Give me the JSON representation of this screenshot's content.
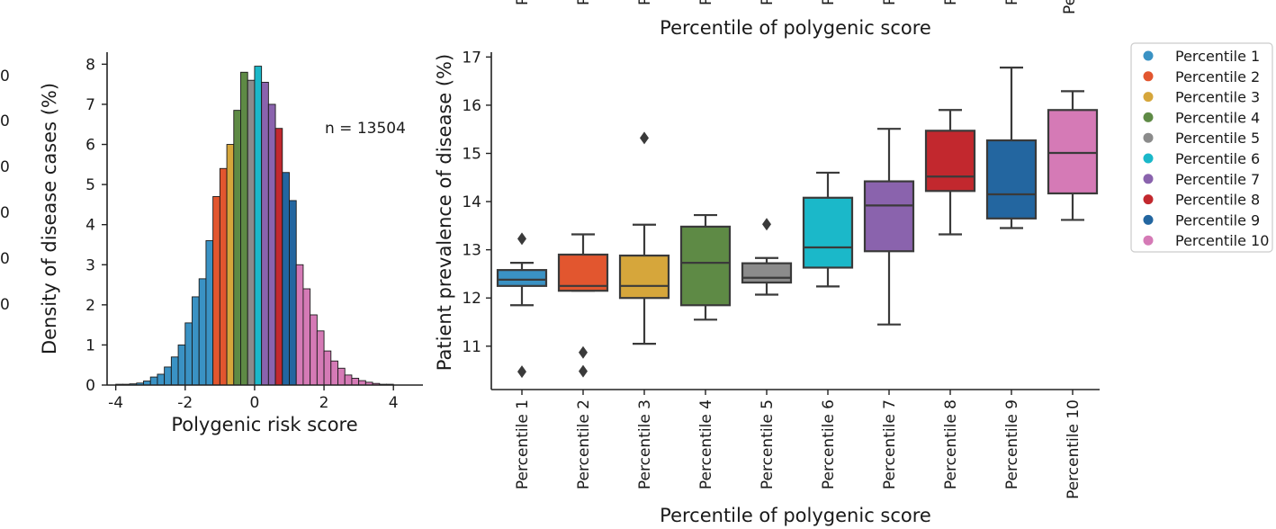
{
  "colors": {
    "palette": [
      "#3a92c4",
      "#e2562f",
      "#d6a63b",
      "#5e8a45",
      "#8b8b8b",
      "#1bb8c9",
      "#8a63ad",
      "#c2282e",
      "#2366a0",
      "#d57ab6"
    ]
  },
  "top_fragment": {
    "xlabel": "Percentile of polygenic score",
    "tick_label": "Pe",
    "tick_glyph": "P",
    "y_tick_glyph": "0"
  },
  "chart_data": [
    {
      "type": "bar",
      "subtype": "histogram",
      "title": "",
      "xlabel": "Polygenic risk score",
      "ylabel": "Density of disease cases (%)",
      "annotation": "n = 13504",
      "xlim": [
        -4.25,
        4.85
      ],
      "ylim": [
        0,
        8.3
      ],
      "xticks": [
        -4,
        -2,
        0,
        2,
        4
      ],
      "xtick_labels": [
        "-4",
        "-2",
        "0",
        "2",
        "4"
      ],
      "yticks": [
        0,
        1,
        2,
        3,
        4,
        5,
        6,
        7,
        8
      ],
      "ytick_labels": [
        "0",
        "1",
        "2",
        "3",
        "4",
        "5",
        "6",
        "7",
        "8"
      ],
      "bin_width": 0.2,
      "bins": [
        {
          "x0": -4.0,
          "value": 0.02,
          "group": 0
        },
        {
          "x0": -3.8,
          "value": 0.02,
          "group": 0
        },
        {
          "x0": -3.6,
          "value": 0.03,
          "group": 0
        },
        {
          "x0": -3.4,
          "value": 0.05,
          "group": 0
        },
        {
          "x0": -3.2,
          "value": 0.1,
          "group": 0
        },
        {
          "x0": -3.0,
          "value": 0.2,
          "group": 0
        },
        {
          "x0": -2.8,
          "value": 0.27,
          "group": 0
        },
        {
          "x0": -2.6,
          "value": 0.45,
          "group": 0
        },
        {
          "x0": -2.4,
          "value": 0.7,
          "group": 0
        },
        {
          "x0": -2.2,
          "value": 1.0,
          "group": 0
        },
        {
          "x0": -2.0,
          "value": 1.55,
          "group": 0
        },
        {
          "x0": -1.8,
          "value": 2.2,
          "group": 0
        },
        {
          "x0": -1.6,
          "value": 2.65,
          "group": 0
        },
        {
          "x0": -1.4,
          "value": 3.6,
          "group": 0
        },
        {
          "x0": -1.2,
          "value": 4.7,
          "group": 1
        },
        {
          "x0": -1.0,
          "value": 5.4,
          "group": 1
        },
        {
          "x0": -0.8,
          "value": 6.0,
          "group": 2
        },
        {
          "x0": -0.6,
          "value": 6.85,
          "group": 3
        },
        {
          "x0": -0.4,
          "value": 7.8,
          "group": 3
        },
        {
          "x0": -0.2,
          "value": 7.6,
          "group": 4
        },
        {
          "x0": 0.0,
          "value": 7.95,
          "group": 5
        },
        {
          "x0": 0.2,
          "value": 7.55,
          "group": 6
        },
        {
          "x0": 0.4,
          "value": 7.0,
          "group": 6
        },
        {
          "x0": 0.6,
          "value": 6.4,
          "group": 7
        },
        {
          "x0": 0.8,
          "value": 5.3,
          "group": 8
        },
        {
          "x0": 1.0,
          "value": 4.6,
          "group": 8
        },
        {
          "x0": 1.2,
          "value": 3.0,
          "group": 9
        },
        {
          "x0": 1.4,
          "value": 2.4,
          "group": 9
        },
        {
          "x0": 1.6,
          "value": 1.75,
          "group": 9
        },
        {
          "x0": 1.8,
          "value": 1.35,
          "group": 9
        },
        {
          "x0": 2.0,
          "value": 0.85,
          "group": 9
        },
        {
          "x0": 2.2,
          "value": 0.6,
          "group": 9
        },
        {
          "x0": 2.4,
          "value": 0.42,
          "group": 9
        },
        {
          "x0": 2.6,
          "value": 0.25,
          "group": 9
        },
        {
          "x0": 2.8,
          "value": 0.17,
          "group": 9
        },
        {
          "x0": 3.0,
          "value": 0.11,
          "group": 9
        },
        {
          "x0": 3.2,
          "value": 0.07,
          "group": 9
        },
        {
          "x0": 3.4,
          "value": 0.04,
          "group": 9
        },
        {
          "x0": 3.6,
          "value": 0.02,
          "group": 9
        },
        {
          "x0": 3.8,
          "value": 0.02,
          "group": 9
        }
      ]
    },
    {
      "type": "box",
      "title": "",
      "xlabel": "Percentile of polygenic score",
      "ylabel": "Patient prevalence of disease (%)",
      "ylim": [
        10.1,
        17.1
      ],
      "yticks": [
        11,
        12,
        13,
        14,
        15,
        16,
        17
      ],
      "ytick_labels": [
        "11",
        "12",
        "13",
        "14",
        "15",
        "16",
        "17"
      ],
      "categories": [
        "Percentile 1",
        "Percentile 2",
        "Percentile 3",
        "Percentile 4",
        "Percentile 5",
        "Percentile 6",
        "Percentile 7",
        "Percentile 8",
        "Percentile 9",
        "Percentile 10"
      ],
      "boxes": [
        {
          "whisker_low": 11.85,
          "q1": 12.25,
          "median": 12.38,
          "q3": 12.58,
          "whisker_high": 12.73,
          "outliers": [
            13.23,
            10.47
          ]
        },
        {
          "whisker_low": 12.15,
          "q1": 12.15,
          "median": 12.25,
          "q3": 12.9,
          "whisker_high": 13.32,
          "outliers": [
            10.87,
            10.48
          ]
        },
        {
          "whisker_low": 11.05,
          "q1": 12.0,
          "median": 12.25,
          "q3": 12.88,
          "whisker_high": 13.52,
          "outliers": [
            15.32
          ]
        },
        {
          "whisker_low": 11.55,
          "q1": 11.85,
          "median": 12.73,
          "q3": 13.48,
          "whisker_high": 13.72,
          "outliers": []
        },
        {
          "whisker_low": 12.07,
          "q1": 12.32,
          "median": 12.42,
          "q3": 12.72,
          "whisker_high": 12.83,
          "outliers": [
            13.53
          ]
        },
        {
          "whisker_low": 12.24,
          "q1": 12.63,
          "median": 13.05,
          "q3": 14.08,
          "whisker_high": 14.6,
          "outliers": []
        },
        {
          "whisker_low": 11.45,
          "q1": 12.97,
          "median": 13.92,
          "q3": 14.42,
          "whisker_high": 15.51,
          "outliers": []
        },
        {
          "whisker_low": 13.32,
          "q1": 14.22,
          "median": 14.52,
          "q3": 15.47,
          "whisker_high": 15.9,
          "outliers": []
        },
        {
          "whisker_low": 13.45,
          "q1": 13.65,
          "median": 14.15,
          "q3": 15.27,
          "whisker_high": 16.78,
          "outliers": []
        },
        {
          "whisker_low": 13.62,
          "q1": 14.17,
          "median": 15.01,
          "q3": 15.9,
          "whisker_high": 16.29,
          "outliers": []
        }
      ]
    }
  ],
  "legend": {
    "placement": "right",
    "entries": [
      "Percentile 1",
      "Percentile 2",
      "Percentile 3",
      "Percentile 4",
      "Percentile 5",
      "Percentile 6",
      "Percentile 7",
      "Percentile 8",
      "Percentile 9",
      "Percentile 10"
    ]
  }
}
